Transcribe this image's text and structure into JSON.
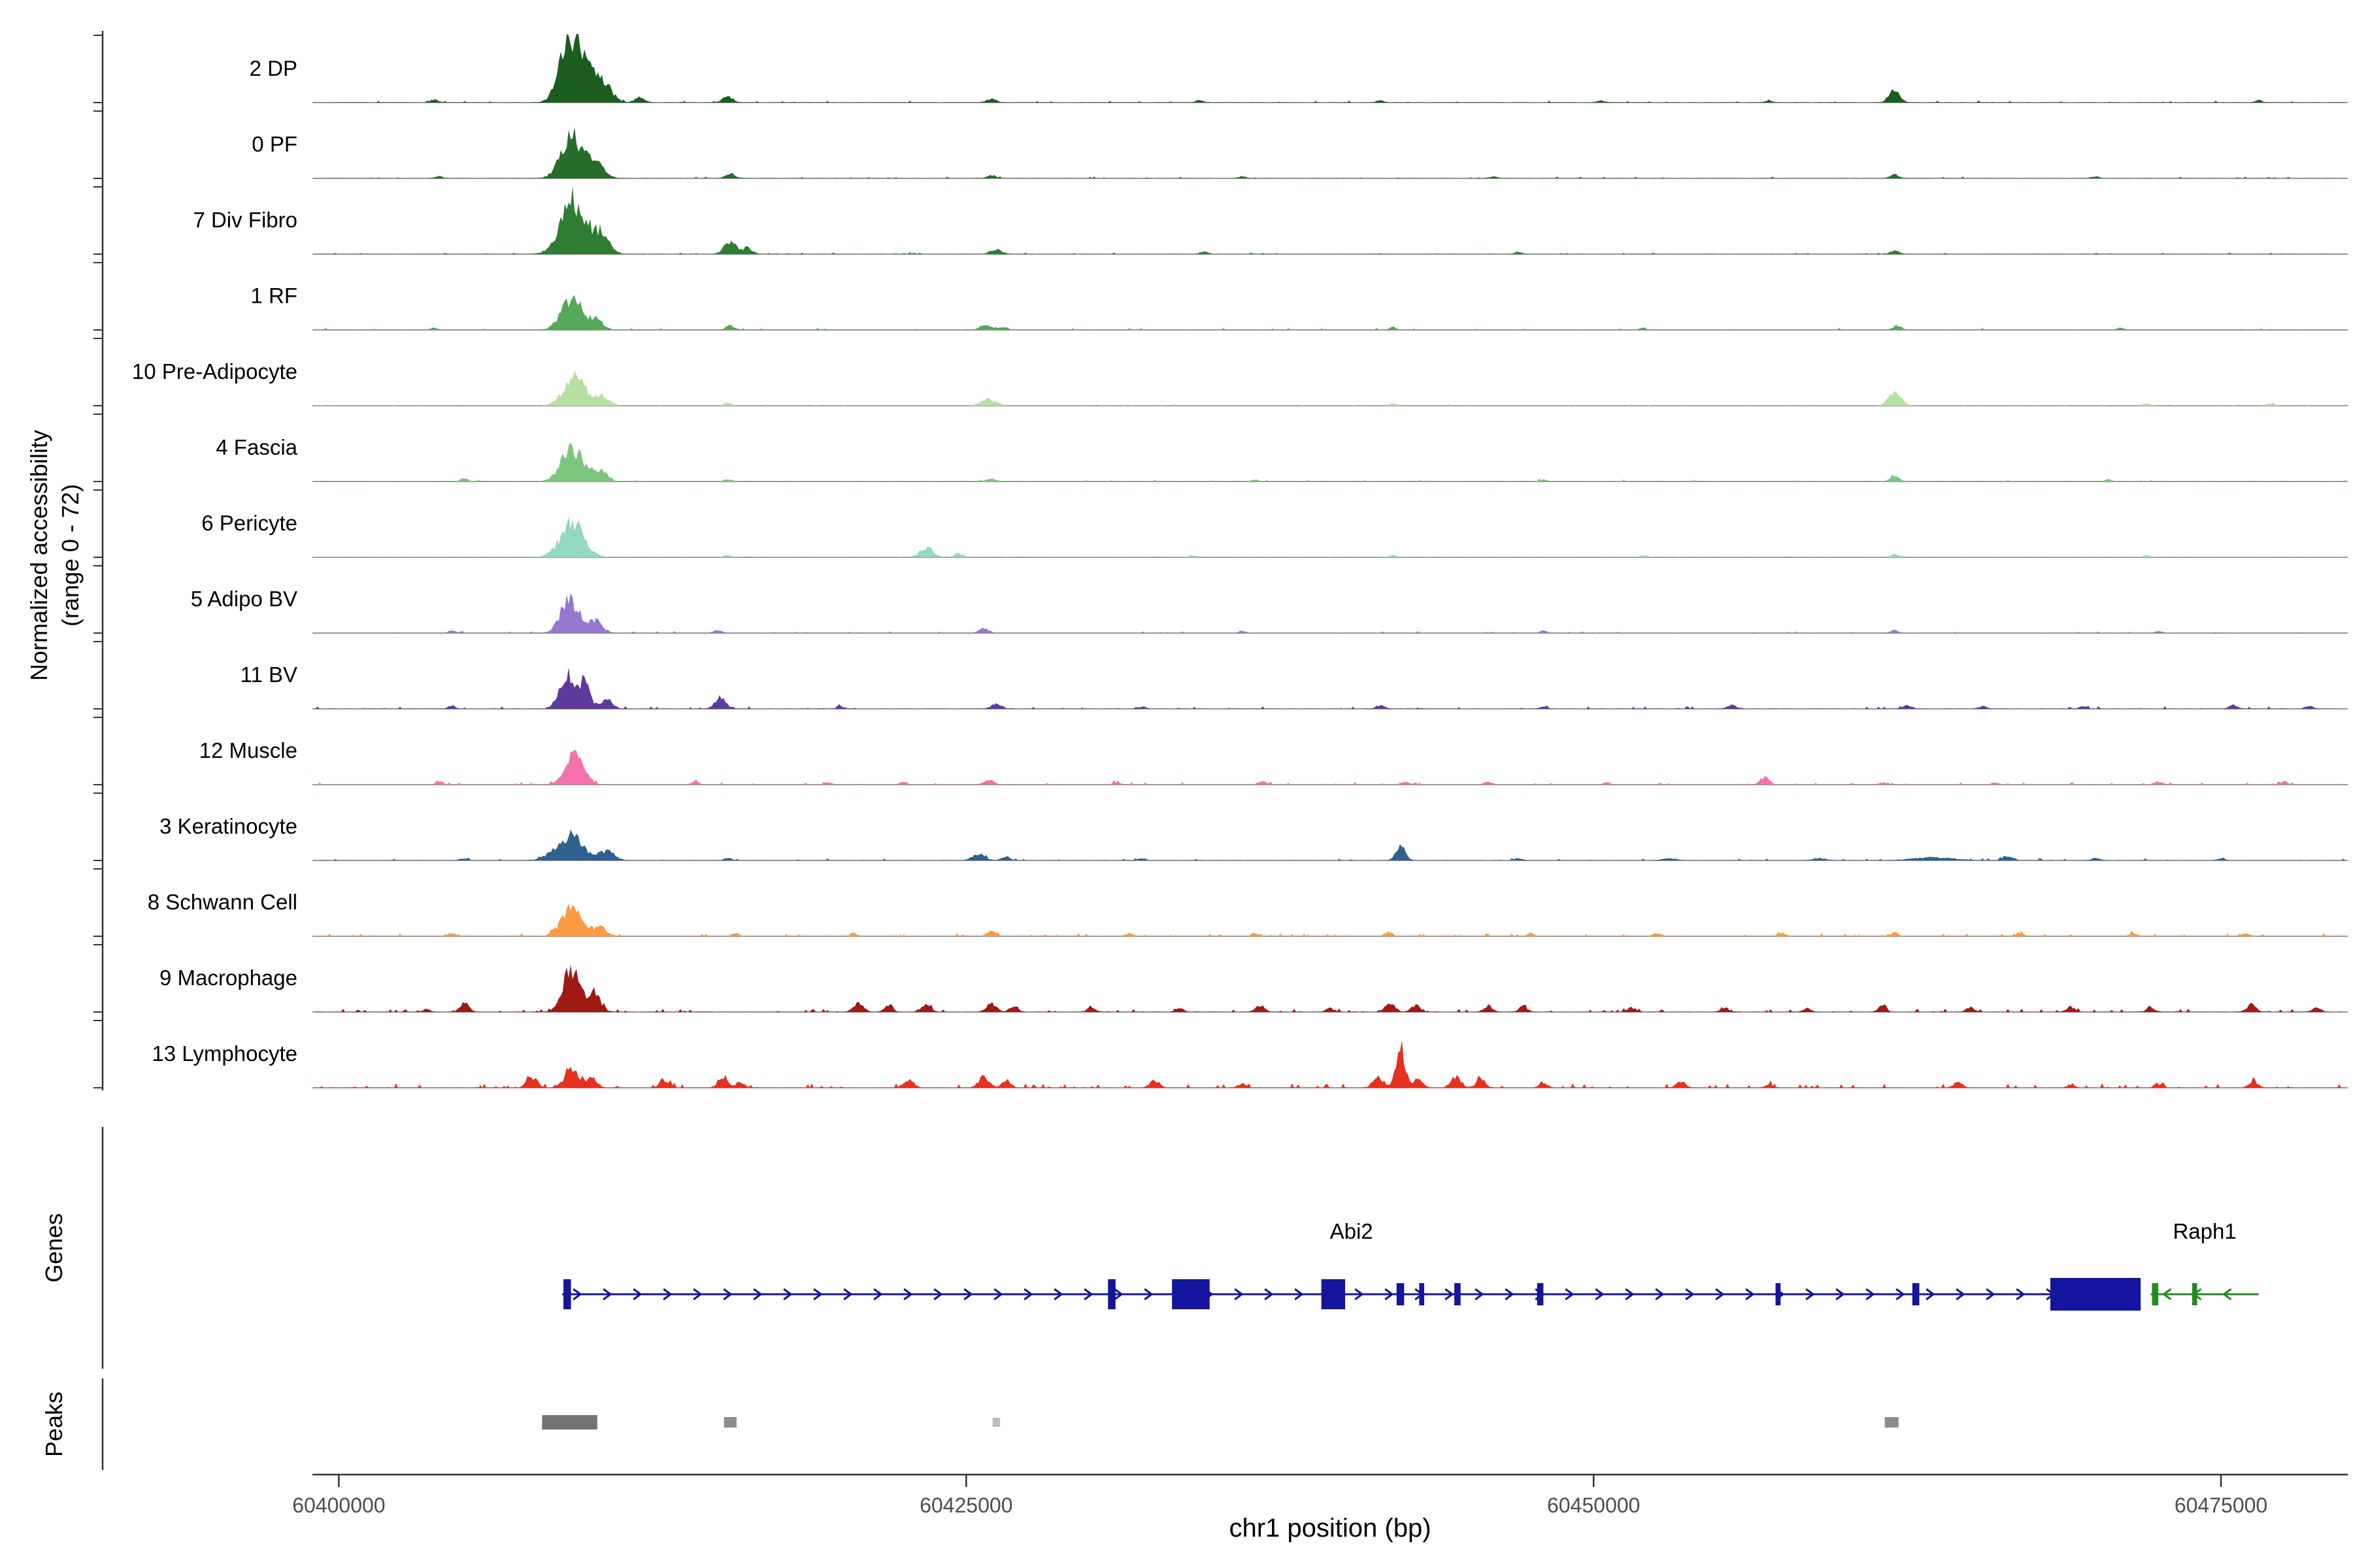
{
  "figure": {
    "y_axis_label_line1": "Normalized accessibility",
    "y_axis_label_line2": "(range 0 - 72)",
    "genes_label": "Genes",
    "peaks_label": "Peaks",
    "x_axis_label": "chr1 position (bp)"
  },
  "chart_data": {
    "type": "area",
    "title": "",
    "xlabel": "chr1 position (bp)",
    "ylabel": "Normalized accessibility (range 0 - 72)",
    "x_range_bp": [
      60399000,
      60480000
    ],
    "y_range_per_track": [
      0,
      72
    ],
    "x_ticks": [
      {
        "bp": 60400000,
        "label": "60400000"
      },
      {
        "bp": 60425000,
        "label": "60425000"
      },
      {
        "bp": 60450000,
        "label": "60450000"
      },
      {
        "bp": 60475000,
        "label": "60475000"
      }
    ],
    "tracks": [
      {
        "label": "2 DP",
        "color": "#1b5e20",
        "noise": [
          0.06,
          2.0
        ],
        "peaks": [
          [
            60409200,
            66,
            900
          ],
          [
            60409700,
            40,
            1400
          ],
          [
            60410600,
            16,
            700
          ],
          [
            60412000,
            7,
            450
          ],
          [
            60403800,
            4,
            350
          ],
          [
            60415500,
            8,
            500
          ],
          [
            60426000,
            5,
            450
          ],
          [
            60434300,
            3,
            350
          ],
          [
            60441500,
            3,
            350
          ],
          [
            60450300,
            2.5,
            350
          ],
          [
            60457000,
            2.5,
            350
          ],
          [
            60462000,
            16,
            500
          ],
          [
            60476500,
            3,
            350
          ]
        ]
      },
      {
        "label": "0 PF",
        "color": "#256d28",
        "noise": [
          0.05,
          1.8
        ],
        "peaks": [
          [
            60409300,
            56,
            1000
          ],
          [
            60410300,
            20,
            700
          ],
          [
            60404000,
            3,
            350
          ],
          [
            60415600,
            6,
            450
          ],
          [
            60426000,
            4,
            400
          ],
          [
            60436000,
            2.5,
            350
          ],
          [
            60446000,
            2.5,
            350
          ],
          [
            60462000,
            5,
            400
          ],
          [
            60470000,
            2.5,
            350
          ]
        ]
      },
      {
        "label": "7 Div Fibro",
        "color": "#2e7d32",
        "noise": [
          0.05,
          1.8
        ],
        "peaks": [
          [
            60409300,
            71,
            1100
          ],
          [
            60410400,
            28,
            800
          ],
          [
            60415600,
            15,
            600
          ],
          [
            60416300,
            8,
            450
          ],
          [
            60426200,
            7,
            500
          ],
          [
            60434500,
            3,
            350
          ],
          [
            60447000,
            2.5,
            350
          ],
          [
            60462000,
            5,
            400
          ]
        ]
      },
      {
        "label": "1 RF",
        "color": "#56a85a",
        "noise": [
          0.05,
          1.8
        ],
        "peaks": [
          [
            60409300,
            45,
            950
          ],
          [
            60410300,
            12,
            600
          ],
          [
            60403800,
            3,
            350
          ],
          [
            60415600,
            6,
            400
          ],
          [
            60425800,
            7,
            550
          ],
          [
            60426500,
            4,
            350
          ],
          [
            60442000,
            3.5,
            350
          ],
          [
            60452000,
            2.5,
            350
          ],
          [
            60462100,
            6,
            400
          ],
          [
            60471000,
            2.5,
            350
          ]
        ]
      },
      {
        "label": "10 Pre-Adipocyte",
        "color": "#b7e0a2",
        "noise": [
          0.05,
          1.8
        ],
        "peaks": [
          [
            60409400,
            38,
            1000
          ],
          [
            60410500,
            13,
            650
          ],
          [
            60415500,
            4,
            350
          ],
          [
            60425900,
            9,
            650
          ],
          [
            60442000,
            3,
            350
          ],
          [
            60462000,
            19,
            550
          ],
          [
            60472000,
            3,
            350
          ],
          [
            60477000,
            3.5,
            350
          ]
        ]
      },
      {
        "label": "4 Fascia",
        "color": "#7cc67e",
        "noise": [
          0.05,
          1.8
        ],
        "peaks": [
          [
            60409300,
            44,
            1000
          ],
          [
            60410400,
            14,
            650
          ],
          [
            60405000,
            4,
            350
          ],
          [
            60415500,
            3,
            350
          ],
          [
            60426000,
            4,
            400
          ],
          [
            60436500,
            2.5,
            350
          ],
          [
            60448000,
            2.5,
            350
          ],
          [
            60462000,
            7,
            450
          ],
          [
            60470500,
            2.5,
            350
          ]
        ]
      },
      {
        "label": "6 Pericyte",
        "color": "#93d9bd",
        "noise": [
          0.04,
          1.5
        ],
        "peaks": [
          [
            60409300,
            45,
            1100
          ],
          [
            60423400,
            13,
            600
          ],
          [
            60424700,
            5,
            400
          ],
          [
            60415500,
            3,
            350
          ],
          [
            60434000,
            2.5,
            350
          ],
          [
            60442000,
            3,
            350
          ],
          [
            60452000,
            2.5,
            350
          ],
          [
            60462000,
            4,
            380
          ],
          [
            60472000,
            2.5,
            350
          ]
        ]
      },
      {
        "label": "5 Adipo BV",
        "color": "#9678cf",
        "noise": [
          0.05,
          1.8
        ],
        "peaks": [
          [
            60409200,
            45,
            850
          ],
          [
            60410200,
            16,
            650
          ],
          [
            60404500,
            3,
            350
          ],
          [
            60415100,
            4,
            380
          ],
          [
            60425700,
            6,
            450
          ],
          [
            60436000,
            2.5,
            350
          ],
          [
            60448000,
            3,
            350
          ],
          [
            60462000,
            4,
            380
          ],
          [
            60472500,
            2.5,
            350
          ]
        ]
      },
      {
        "label": "11 BV",
        "color": "#5e3a9e",
        "noise": [
          0.08,
          2.5
        ],
        "peaks": [
          [
            60409100,
            46,
            700
          ],
          [
            60409800,
            32,
            550
          ],
          [
            60410700,
            14,
            500
          ],
          [
            60404500,
            4,
            350
          ],
          [
            60415200,
            15,
            500
          ],
          [
            60420000,
            3,
            350
          ],
          [
            60426200,
            7,
            450
          ],
          [
            60432000,
            3,
            350
          ],
          [
            60441500,
            5,
            400
          ],
          [
            60448000,
            3,
            350
          ],
          [
            60455500,
            5,
            400
          ],
          [
            60462500,
            5,
            400
          ],
          [
            60465500,
            4,
            350
          ],
          [
            60469500,
            4,
            350
          ],
          [
            60475500,
            5,
            400
          ],
          [
            60478500,
            4,
            350
          ]
        ]
      },
      {
        "label": "12 Muscle",
        "color": "#f472ac",
        "noise": [
          0.08,
          2.5
        ],
        "peaks": [
          [
            60409400,
            45,
            850
          ],
          [
            60404000,
            4,
            320
          ],
          [
            60414200,
            4,
            320
          ],
          [
            60419500,
            3,
            320
          ],
          [
            60422500,
            4,
            320
          ],
          [
            60425900,
            7,
            420
          ],
          [
            60431000,
            3,
            320
          ],
          [
            60436800,
            5,
            380
          ],
          [
            60442500,
            4,
            350
          ],
          [
            60445800,
            4,
            350
          ],
          [
            60450500,
            3,
            320
          ],
          [
            60456800,
            10,
            420
          ],
          [
            60461500,
            3,
            320
          ],
          [
            60466000,
            3,
            320
          ],
          [
            60472500,
            4,
            350
          ],
          [
            60477500,
            4,
            350
          ]
        ]
      },
      {
        "label": "3 Keratinocyte",
        "color": "#2f618f",
        "noise": [
          0.07,
          2.2
        ],
        "peaks": [
          [
            60409200,
            32,
            1300
          ],
          [
            60410700,
            12,
            700
          ],
          [
            60405000,
            3,
            350
          ],
          [
            60415500,
            3,
            350
          ],
          [
            60425500,
            9,
            550
          ],
          [
            60426600,
            5,
            400
          ],
          [
            60432000,
            3,
            350
          ],
          [
            60442300,
            19,
            450
          ],
          [
            60447000,
            3,
            350
          ],
          [
            60453000,
            3,
            600
          ],
          [
            60459000,
            3,
            600
          ],
          [
            60463500,
            4,
            1800
          ],
          [
            60466500,
            6,
            500
          ],
          [
            60470000,
            3,
            400
          ],
          [
            60475000,
            3,
            350
          ]
        ]
      },
      {
        "label": "8 Schwann Cell",
        "color": "#fb9a43",
        "noise": [
          0.12,
          3.0
        ],
        "peaks": [
          [
            60409300,
            41,
            950
          ],
          [
            60410400,
            12,
            600
          ],
          [
            60404500,
            4,
            330
          ],
          [
            60415800,
            4,
            330
          ],
          [
            60420500,
            4,
            330
          ],
          [
            60426000,
            6,
            420
          ],
          [
            60431500,
            4,
            330
          ],
          [
            60436500,
            4,
            330
          ],
          [
            60441800,
            5,
            350
          ],
          [
            60447500,
            4,
            330
          ],
          [
            60452500,
            4,
            330
          ],
          [
            60457500,
            4,
            330
          ],
          [
            60462000,
            5,
            350
          ],
          [
            60467000,
            4,
            330
          ],
          [
            60471500,
            4,
            330
          ],
          [
            60476000,
            4,
            330
          ]
        ]
      },
      {
        "label": "9 Macrophage",
        "color": "#9e1a15",
        "noise": [
          0.12,
          3.5
        ],
        "peaks": [
          [
            60409300,
            58,
            800
          ],
          [
            60410200,
            22,
            600
          ],
          [
            60405000,
            11,
            420
          ],
          [
            60403500,
            4,
            330
          ],
          [
            60420700,
            11,
            460
          ],
          [
            60421900,
            9,
            400
          ],
          [
            60423400,
            10,
            430
          ],
          [
            60426000,
            11,
            470
          ],
          [
            60426900,
            8,
            400
          ],
          [
            60430000,
            6,
            380
          ],
          [
            60433500,
            5,
            360
          ],
          [
            60436700,
            9,
            430
          ],
          [
            60439500,
            5,
            360
          ],
          [
            60441900,
            12,
            470
          ],
          [
            60442900,
            9,
            420
          ],
          [
            60445800,
            8,
            400
          ],
          [
            60447200,
            7,
            390
          ],
          [
            60451500,
            6,
            380
          ],
          [
            60455200,
            6,
            380
          ],
          [
            60458500,
            5,
            360
          ],
          [
            60461500,
            7,
            390
          ],
          [
            60465000,
            6,
            380
          ],
          [
            60469000,
            7,
            390
          ],
          [
            60472200,
            6,
            380
          ],
          [
            60476200,
            10,
            440
          ],
          [
            60478800,
            6,
            380
          ]
        ]
      },
      {
        "label": "13 Lymphocyte",
        "color": "#e8301f",
        "noise": [
          0.14,
          4.5
        ],
        "peaks": [
          [
            60407700,
            15,
            470
          ],
          [
            60409300,
            27,
            650
          ],
          [
            60410100,
            13,
            470
          ],
          [
            60413000,
            10,
            440
          ],
          [
            60415300,
            12,
            450
          ],
          [
            60416000,
            8,
            400
          ],
          [
            60422700,
            11,
            450
          ],
          [
            60425700,
            15,
            480
          ],
          [
            60426600,
            9,
            420
          ],
          [
            60432500,
            10,
            440
          ],
          [
            60436000,
            5,
            380
          ],
          [
            60441400,
            15,
            460
          ],
          [
            60442300,
            50,
            430
          ],
          [
            60443000,
            12,
            430
          ],
          [
            60444500,
            15,
            470
          ],
          [
            60445500,
            11,
            440
          ],
          [
            60448000,
            6,
            380
          ],
          [
            60453500,
            8,
            420
          ],
          [
            60457000,
            4,
            360
          ],
          [
            60464500,
            7,
            400
          ],
          [
            60469000,
            4,
            360
          ],
          [
            60472500,
            5,
            370
          ],
          [
            60476300,
            8,
            420
          ]
        ]
      }
    ],
    "genes": [
      {
        "name": "Abi2",
        "strand": "+",
        "color": "#14149e",
        "start": 60408900,
        "end": 60471800,
        "exons": [
          [
            60408950,
            300,
            46
          ],
          [
            60430650,
            300,
            46
          ],
          [
            60433200,
            1500,
            46
          ],
          [
            60439150,
            950,
            46
          ],
          [
            60442150,
            300,
            34
          ],
          [
            60443050,
            200,
            34
          ],
          [
            60444450,
            250,
            34
          ],
          [
            60447750,
            250,
            34
          ],
          [
            60457250,
            200,
            34
          ],
          [
            60462700,
            280,
            34
          ],
          [
            60468200,
            3600,
            50
          ]
        ]
      },
      {
        "name": "Raph1",
        "strand": "-",
        "color": "#228b22",
        "start": 60472200,
        "end": 60476500,
        "exons": [
          [
            60472250,
            250,
            34
          ],
          [
            60473850,
            200,
            34
          ]
        ]
      }
    ],
    "peak_regions": [
      {
        "start": 60408100,
        "end": 60410300,
        "color": "#737373",
        "height": 22
      },
      {
        "start": 60415350,
        "end": 60415850,
        "color": "#8c8c8c",
        "height": 16
      },
      {
        "start": 60426050,
        "end": 60426350,
        "color": "#bdbdbd",
        "height": 14
      },
      {
        "start": 60461600,
        "end": 60462150,
        "color": "#8c8c8c",
        "height": 16
      }
    ]
  }
}
